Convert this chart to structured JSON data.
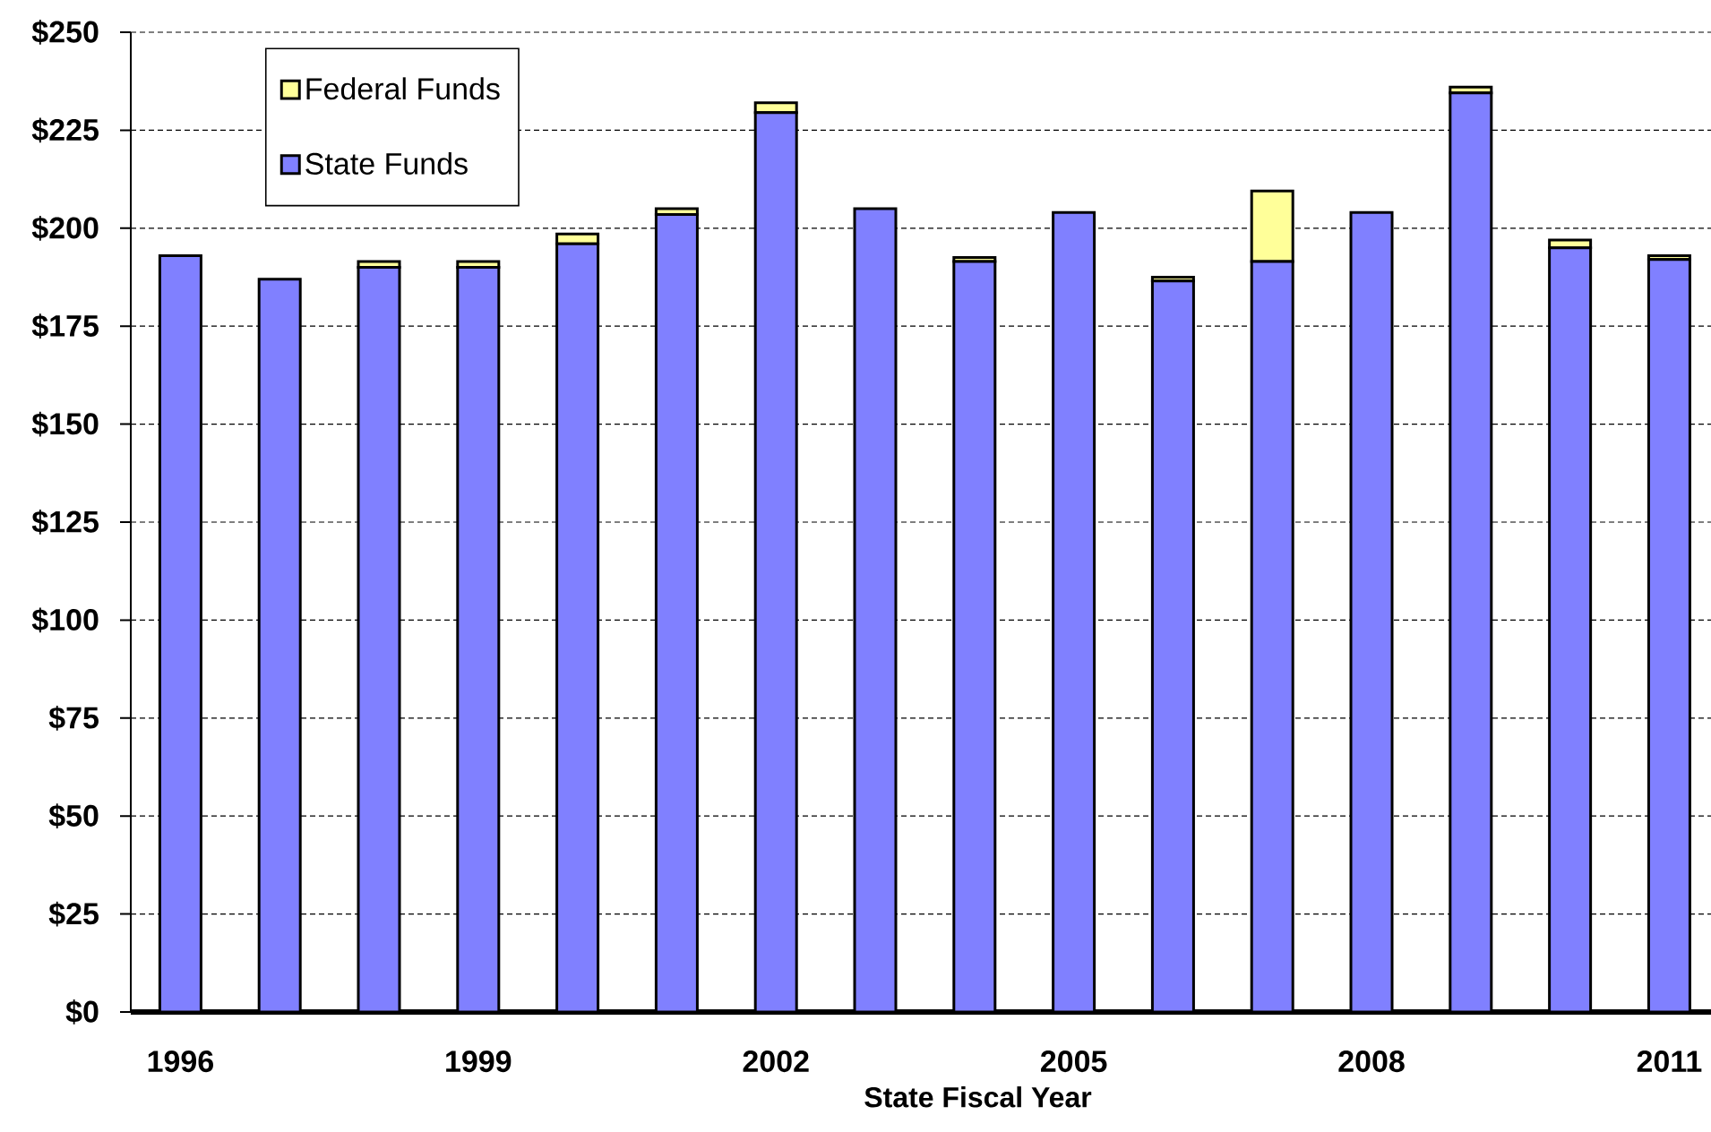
{
  "chart_data": {
    "type": "bar",
    "stacked": true,
    "xlabel": "State Fiscal Year",
    "categories": [
      "1996",
      null,
      null,
      "1999",
      null,
      null,
      "2002",
      null,
      null,
      "2005",
      null,
      null,
      "2008",
      null,
      null,
      "2011"
    ],
    "series": [
      {
        "name": "State Funds",
        "color": "#8080ff",
        "values": [
          193,
          187,
          190,
          190,
          196,
          203.5,
          229.5,
          205,
          191.5,
          204,
          186.5,
          191.5,
          204,
          234.5,
          195,
          192
        ]
      },
      {
        "name": "Federal Funds",
        "color": "#ffff99",
        "values": [
          null,
          null,
          1.5,
          1.5,
          2.5,
          1.5,
          2.5,
          null,
          1,
          null,
          1,
          18,
          null,
          1.5,
          2,
          1
        ]
      }
    ],
    "ylim": [
      0,
      250
    ],
    "yticks": [
      {
        "value": 0,
        "label": "$0"
      },
      {
        "value": 25,
        "label": "$25"
      },
      {
        "value": 50,
        "label": "$50"
      },
      {
        "value": 75,
        "label": "$75"
      },
      {
        "value": 100,
        "label": "$100"
      },
      {
        "value": 125,
        "label": "$125"
      },
      {
        "value": 150,
        "label": "$150"
      },
      {
        "value": 175,
        "label": "$175"
      },
      {
        "value": 200,
        "label": "$200"
      },
      {
        "value": 225,
        "label": "$225"
      },
      {
        "value": 250,
        "label": "$250"
      }
    ],
    "grid": "y",
    "legend": "top left"
  }
}
